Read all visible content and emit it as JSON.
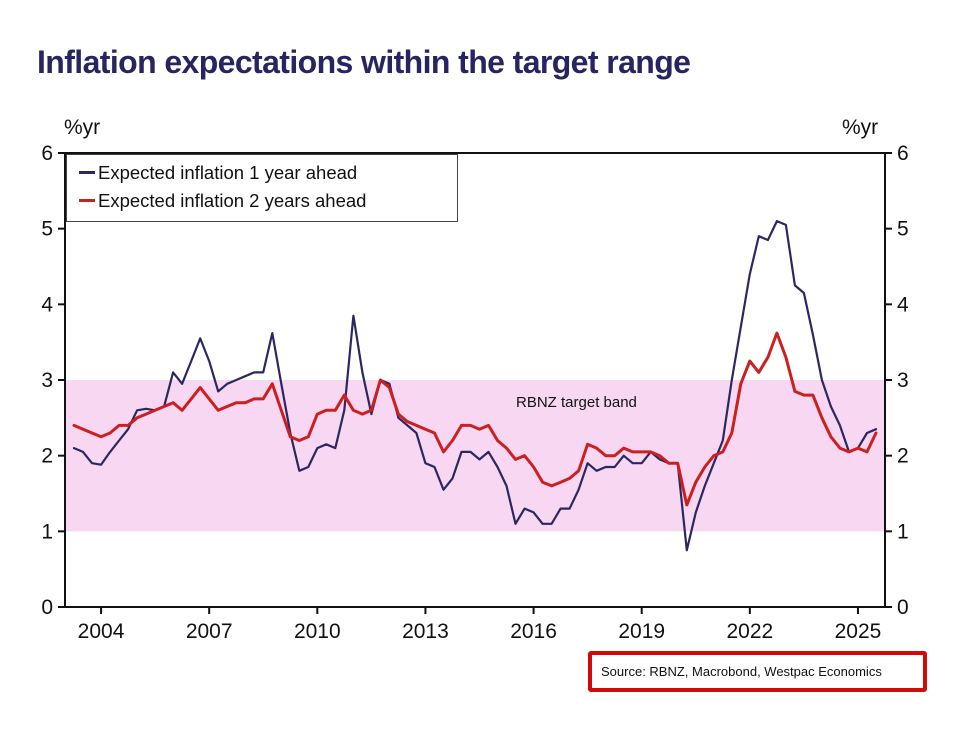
{
  "source": {
    "text": "Source: RBNZ, Macrobond, Westpac Economics"
  },
  "chart_data": {
    "type": "line",
    "title": "Inflation expectations within the target range",
    "left_unit": "%yr",
    "right_unit": "%yr",
    "xlabel": "",
    "ylabel": "",
    "xlim": [
      2003.0,
      2025.75
    ],
    "ylim": [
      0,
      6
    ],
    "yticks": [
      0,
      1,
      2,
      3,
      4,
      5,
      6
    ],
    "xticks": [
      2004,
      2007,
      2010,
      2013,
      2016,
      2019,
      2022,
      2025
    ],
    "grid": false,
    "legend_position": "top-left",
    "band": {
      "from": 1,
      "to": 3,
      "color": "#f8d7f2",
      "label": "RBNZ target band"
    },
    "x": [
      2003.25,
      2003.5,
      2003.75,
      2004,
      2004.25,
      2004.5,
      2004.75,
      2005,
      2005.25,
      2005.5,
      2005.75,
      2006,
      2006.25,
      2006.5,
      2006.75,
      2007,
      2007.25,
      2007.5,
      2007.75,
      2008,
      2008.25,
      2008.5,
      2008.75,
      2009,
      2009.25,
      2009.5,
      2009.75,
      2010,
      2010.25,
      2010.5,
      2010.75,
      2011,
      2011.25,
      2011.5,
      2011.75,
      2012,
      2012.25,
      2012.5,
      2012.75,
      2013,
      2013.25,
      2013.5,
      2013.75,
      2014,
      2014.25,
      2014.5,
      2014.75,
      2015,
      2015.25,
      2015.5,
      2015.75,
      2016,
      2016.25,
      2016.5,
      2016.75,
      2017,
      2017.25,
      2017.5,
      2017.75,
      2018,
      2018.25,
      2018.5,
      2018.75,
      2019,
      2019.25,
      2019.5,
      2019.75,
      2020,
      2020.25,
      2020.5,
      2020.75,
      2021,
      2021.25,
      2021.5,
      2021.75,
      2022,
      2022.25,
      2022.5,
      2022.75,
      2023,
      2023.25,
      2023.5,
      2023.75,
      2024,
      2024.25,
      2024.5,
      2024.75,
      2025,
      2025.25,
      2025.5
    ],
    "series": [
      {
        "name": "Expected inflation 1 year ahead",
        "color": "#2c2760",
        "width": 2.2,
        "values": [
          2.1,
          2.05,
          1.9,
          1.88,
          2.05,
          2.2,
          2.35,
          2.6,
          2.62,
          2.6,
          2.65,
          3.1,
          2.95,
          3.25,
          3.55,
          3.25,
          2.85,
          2.95,
          3.0,
          3.05,
          3.1,
          3.1,
          3.62,
          2.95,
          2.3,
          1.8,
          1.85,
          2.1,
          2.15,
          2.1,
          2.6,
          3.85,
          3.1,
          2.55,
          3.0,
          2.95,
          2.5,
          2.4,
          2.3,
          1.9,
          1.85,
          1.55,
          1.7,
          2.05,
          2.05,
          1.95,
          2.05,
          1.85,
          1.6,
          1.1,
          1.3,
          1.25,
          1.1,
          1.1,
          1.3,
          1.3,
          1.55,
          1.9,
          1.8,
          1.85,
          1.85,
          2.0,
          1.9,
          1.9,
          2.05,
          1.95,
          1.9,
          1.9,
          0.75,
          1.25,
          1.6,
          1.9,
          2.2,
          3.0,
          3.7,
          4.4,
          4.9,
          4.85,
          5.1,
          5.05,
          4.25,
          4.15,
          3.6,
          3.0,
          2.65,
          2.4,
          2.05,
          2.1,
          2.3,
          2.35
        ]
      },
      {
        "name": "Expected inflation 2 years ahead",
        "color": "#cc2020",
        "width": 3,
        "values": [
          2.4,
          2.35,
          2.3,
          2.25,
          2.3,
          2.4,
          2.4,
          2.5,
          2.55,
          2.6,
          2.65,
          2.7,
          2.6,
          2.75,
          2.9,
          2.75,
          2.6,
          2.65,
          2.7,
          2.7,
          2.75,
          2.75,
          2.95,
          2.6,
          2.25,
          2.2,
          2.25,
          2.55,
          2.6,
          2.6,
          2.8,
          2.6,
          2.55,
          2.6,
          3.0,
          2.9,
          2.55,
          2.45,
          2.4,
          2.35,
          2.3,
          2.05,
          2.2,
          2.4,
          2.4,
          2.35,
          2.4,
          2.2,
          2.1,
          1.95,
          2.0,
          1.85,
          1.65,
          1.6,
          1.65,
          1.7,
          1.8,
          2.15,
          2.1,
          2.0,
          2.0,
          2.1,
          2.05,
          2.05,
          2.05,
          2.0,
          1.9,
          1.9,
          1.35,
          1.65,
          1.85,
          2.0,
          2.05,
          2.3,
          2.95,
          3.25,
          3.1,
          3.3,
          3.62,
          3.3,
          2.85,
          2.8,
          2.8,
          2.5,
          2.25,
          2.1,
          2.05,
          2.1,
          2.05,
          2.3
        ]
      }
    ],
    "colors": {
      "title": "#282361",
      "axis": "#111111",
      "source_border": "#d40a0a"
    }
  }
}
